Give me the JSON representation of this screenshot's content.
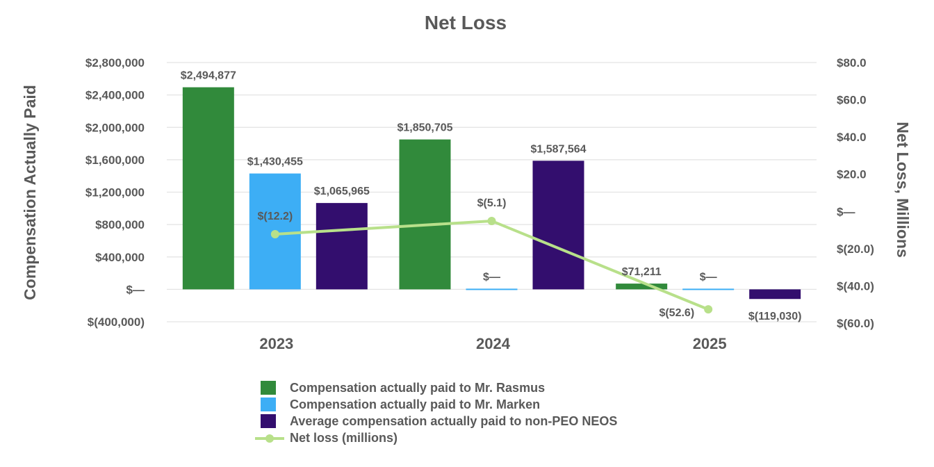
{
  "chart_data": {
    "type": "bar",
    "title": "Net Loss",
    "ylabel": "Compensation Actually Paid",
    "y2label": "Net Loss, Millions",
    "categories": [
      "2023",
      "2024",
      "2025"
    ],
    "ylim": [
      -400000,
      2800000
    ],
    "y2lim": [
      -60,
      80
    ],
    "yticks": [
      {
        "value": 2800000,
        "label": "$2,800,000"
      },
      {
        "value": 2400000,
        "label": "$2,400,000"
      },
      {
        "value": 2000000,
        "label": "$2,000,000"
      },
      {
        "value": 1600000,
        "label": "$1,600,000"
      },
      {
        "value": 1200000,
        "label": "$1,200,000"
      },
      {
        "value": 800000,
        "label": "$800,000"
      },
      {
        "value": 400000,
        "label": "$400,000"
      },
      {
        "value": 0,
        "label": "$—"
      },
      {
        "value": -400000,
        "label": "$(400,000)"
      }
    ],
    "y2ticks": [
      {
        "value": 80,
        "label": "$80.0"
      },
      {
        "value": 60,
        "label": "$60.0"
      },
      {
        "value": 40,
        "label": "$40.0"
      },
      {
        "value": 20,
        "label": "$20.0"
      },
      {
        "value": 0,
        "label": "$—"
      },
      {
        "value": -20,
        "label": "$(20.0)"
      },
      {
        "value": -40,
        "label": "$(40.0)"
      },
      {
        "value": -60,
        "label": "$(60.0)"
      }
    ],
    "grid": true,
    "legend_position": "bottom",
    "series": [
      {
        "name": "Compensation actually paid to Mr. Rasmus",
        "type": "bar",
        "color": "#318a3b",
        "values": [
          2494877,
          1850705,
          71211
        ],
        "labels": [
          "$2,494,877",
          "$1,850,705",
          "$71,211"
        ]
      },
      {
        "name": "Compensation actually paid to Mr. Marken",
        "type": "bar",
        "color": "#3daef5",
        "values": [
          1430455,
          0,
          0
        ],
        "labels": [
          "$1,430,455",
          "$—",
          "$—"
        ]
      },
      {
        "name": "Average compensation actually paid to non-PEO NEOS",
        "type": "bar",
        "color": "#330e6e",
        "values": [
          1065965,
          1587564,
          -119030
        ],
        "labels": [
          "$1,065,965",
          "$1,587,564",
          "$(119,030)"
        ]
      },
      {
        "name": "Net loss (millions)",
        "type": "line",
        "axis": "right",
        "color": "#b8e08a",
        "values": [
          -12.2,
          -5.1,
          -52.6
        ],
        "labels": [
          "$(12.2)",
          "$(5.1)",
          "$(52.6)"
        ]
      }
    ]
  }
}
